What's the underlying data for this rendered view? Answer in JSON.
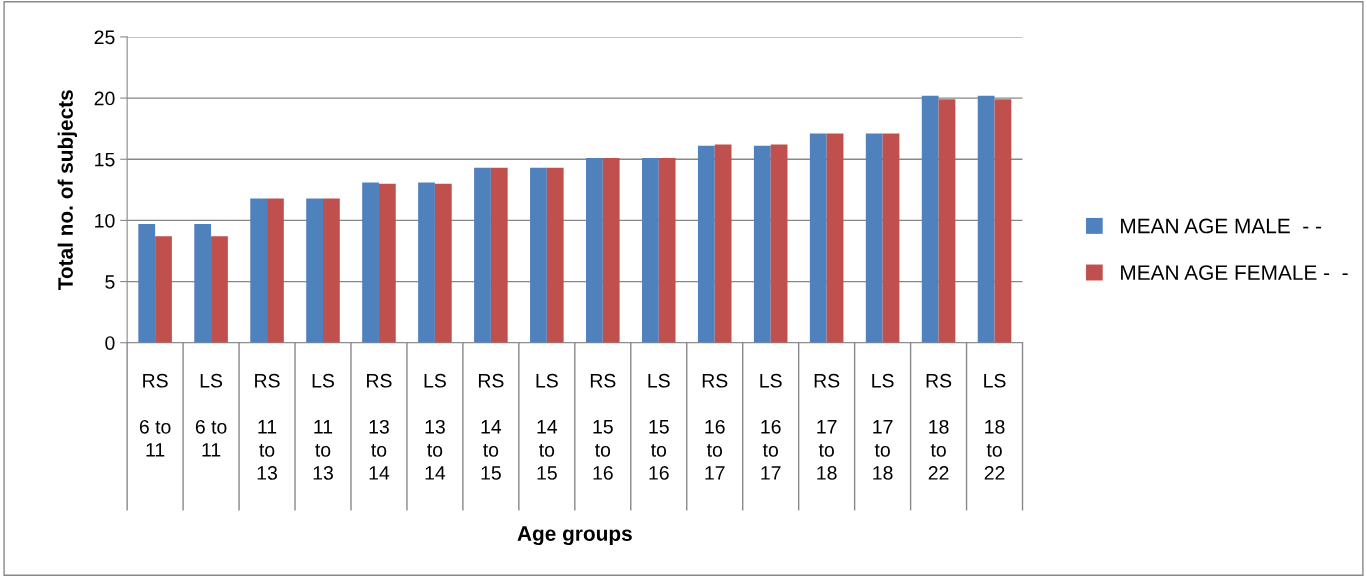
{
  "chart_data": {
    "type": "bar",
    "annotations": [
      "Age groups"
    ],
    "ylabel": "Total no. of subjects",
    "categories": [
      "RS\n6 to 11",
      "LS\n6 to 11",
      "RS\n11 to 13",
      "LS\n11 to 13",
      "RS\n13 to 14",
      "LS\n13 to 14",
      "RS\n14 to 15",
      "LS\n14 to 15",
      "RS\n15 to 16",
      "LS\n15 to 16",
      "RS\n16 to 17",
      "LS\n16 to 17",
      "RS\n17 to 18",
      "LS\n17 to 18",
      "RS\n18 to 22",
      "LS\n18 to 22"
    ],
    "series": [
      {
        "name": "MEAN AGE MALE  - -",
        "color": "#4f81bd",
        "values": [
          9.7,
          9.7,
          11.8,
          11.8,
          13.1,
          13.1,
          14.3,
          14.3,
          15.1,
          15.1,
          16.1,
          16.1,
          17.1,
          17.1,
          20.2,
          20.2
        ]
      },
      {
        "name": "MEAN AGE FEMALE -  -",
        "color": "#c0504d",
        "values": [
          8.7,
          8.7,
          11.8,
          11.8,
          13.0,
          13.0,
          14.3,
          14.3,
          15.1,
          15.1,
          16.2,
          16.2,
          17.1,
          17.1,
          19.9,
          19.9
        ]
      }
    ],
    "ylim": [
      0,
      25
    ],
    "yticks": [
      0,
      5,
      10,
      15,
      20,
      25
    ],
    "grid": "y",
    "legend": "right"
  }
}
